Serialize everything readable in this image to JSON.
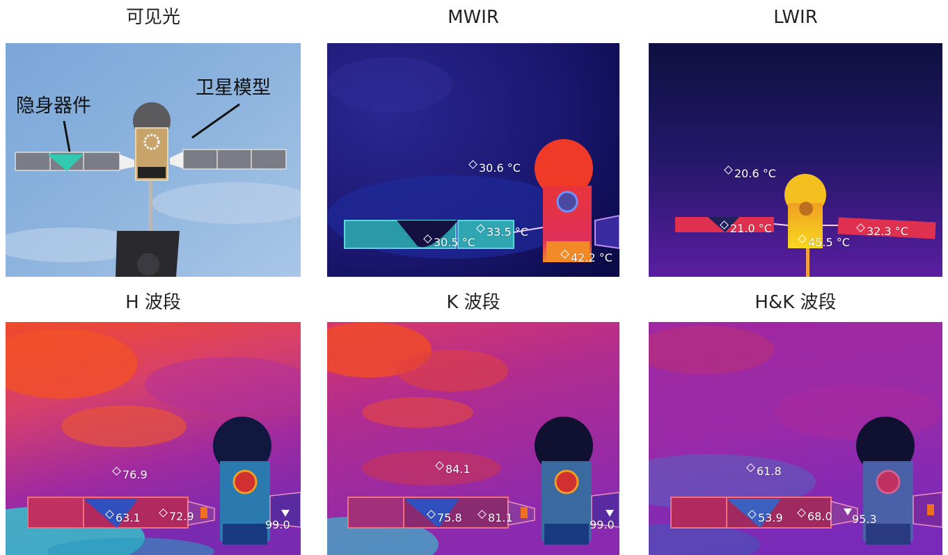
{
  "titles": {
    "visible": "可见光",
    "mwir": "MWIR",
    "lwir": "LWIR",
    "h": "H 波段",
    "k": "K 波段",
    "hk": "H&K 波段"
  },
  "visible_panel": {
    "annotation_stealth": "隐身器件",
    "annotation_satellite": "卫星模型"
  },
  "mwir_panel": {
    "readouts": [
      "30.6 °C",
      "33.5 °C",
      "30.5 °C",
      "42.2 °C"
    ]
  },
  "lwir_panel": {
    "readouts": [
      "20.6 °C",
      "21.0 °C",
      "45.5 °C",
      "32.3 °C"
    ]
  },
  "h_panel": {
    "readouts": [
      "76.9",
      "63.1",
      "72.9",
      "99.0"
    ]
  },
  "k_panel": {
    "readouts": [
      "84.1",
      "75.8",
      "81.1",
      "99.0"
    ]
  },
  "hk_panel": {
    "readouts": [
      "61.8",
      "53.9",
      "68.0",
      "95.3"
    ]
  },
  "colors": {
    "sky_visible": "#7fa9d8",
    "mwir_bg": "#1a1670",
    "lwir_bg": "#2a1a78",
    "nir_warm": "#f24a2a",
    "nir_mid": "#b02a9a",
    "nir_cool": "#3cb8c8"
  }
}
